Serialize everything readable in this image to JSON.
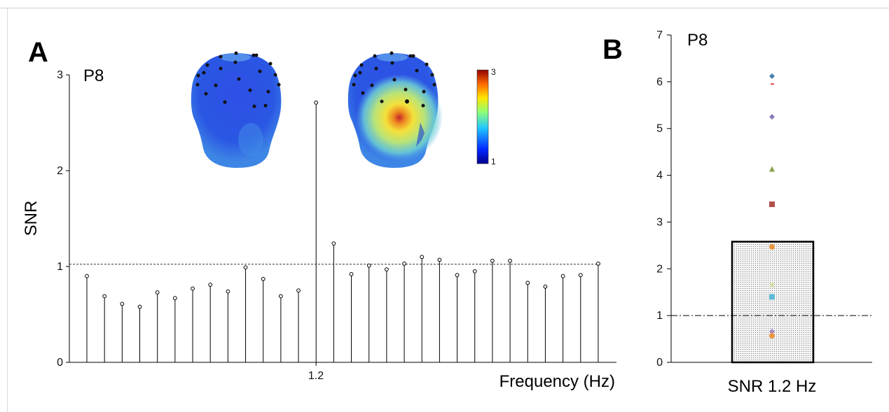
{
  "chart_data": [
    {
      "panel": "A",
      "type": "stem",
      "channel": "P8",
      "ylabel": "SNR",
      "xlabel": "Frequency (Hz)",
      "ylim": [
        0,
        3
      ],
      "yticks": [
        "0",
        "1",
        "2",
        "3"
      ],
      "xticks": [
        "1.2"
      ],
      "threshold": 1.02,
      "colorbar_ticks": [
        "1",
        "3"
      ],
      "values": [
        0.9,
        0.69,
        0.61,
        0.58,
        0.73,
        0.67,
        0.77,
        0.81,
        0.74,
        0.99,
        0.87,
        0.69,
        0.75,
        2.71,
        1.24,
        0.92,
        1.01,
        0.97,
        1.03,
        1.1,
        1.07,
        0.91,
        0.95,
        1.06,
        1.06,
        0.83,
        0.79,
        0.9,
        0.91,
        1.03
      ],
      "peak_index": 13,
      "marker_color": "#000000"
    },
    {
      "panel": "B",
      "type": "bar",
      "channel": "P8",
      "categories": [
        "SNR 1.2 Hz"
      ],
      "values": [
        2.58
      ],
      "ylim": [
        0,
        7
      ],
      "yticks": [
        "0",
        "1",
        "2",
        "3",
        "4",
        "5",
        "6",
        "7"
      ],
      "threshold": 1.0,
      "bar_fill": "stippled grey",
      "points": [
        {
          "value": 6.12,
          "marker": "diamond",
          "color": "#4a7fb0"
        },
        {
          "value": 5.95,
          "marker": "dash",
          "color": "#e0454b"
        },
        {
          "value": 5.25,
          "marker": "diamond",
          "color": "#8c7ab8"
        },
        {
          "value": 4.12,
          "marker": "triangle",
          "color": "#8aa04e"
        },
        {
          "value": 3.38,
          "marker": "square",
          "color": "#b3504b"
        },
        {
          "value": 2.47,
          "marker": "circle",
          "color": "#e89640"
        },
        {
          "value": 1.65,
          "marker": "x",
          "color": "#c9d98f"
        },
        {
          "value": 1.4,
          "marker": "square",
          "color": "#5cb8d6"
        },
        {
          "value": 0.66,
          "marker": "diamond",
          "color": "#a88fc4"
        },
        {
          "value": 0.57,
          "marker": "circle",
          "color": "#e89640"
        }
      ]
    }
  ],
  "labels": {
    "panel_a": "A",
    "panel_b": "B"
  }
}
